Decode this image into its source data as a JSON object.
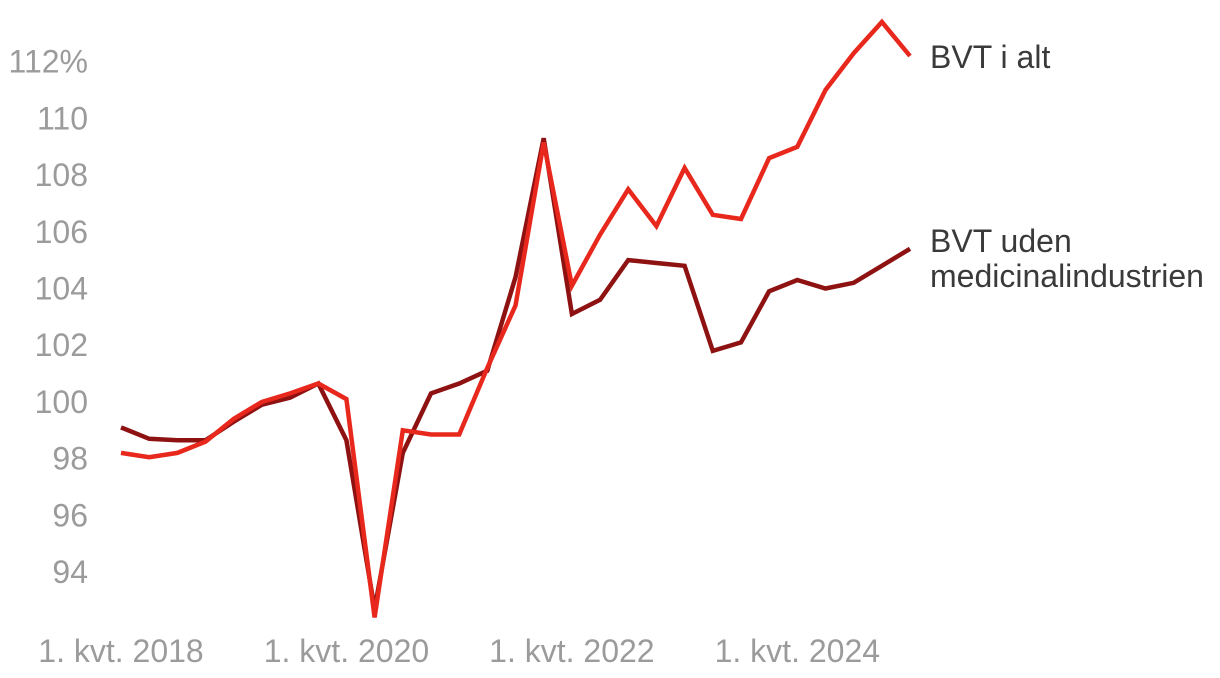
{
  "chart": {
    "background_color": "#ffffff",
    "axis_label_color": "#9b9b9b",
    "legend_text_color": "#3a3a3a",
    "legend": {
      "series1_label": "BVT i alt",
      "series2_label_line1": "BVT uden",
      "series2_label_line2": "medicinalindustrien"
    },
    "chart_data": {
      "type": "line",
      "title": "",
      "xlabel": "",
      "ylabel": "",
      "grid": "off",
      "legend_position": "right of line ends",
      "x_unit": "quarter",
      "categories": [
        "2018K1",
        "2018K2",
        "2018K3",
        "2018K4",
        "2019K1",
        "2019K2",
        "2019K3",
        "2019K4",
        "2020K1",
        "2020K2",
        "2020K3",
        "2020K4",
        "2021K1",
        "2021K2",
        "2021K3",
        "2021K4",
        "2022K1",
        "2022K2",
        "2022K3",
        "2022K4",
        "2023K1",
        "2023K2",
        "2023K3",
        "2023K4",
        "2024K1",
        "2024K2",
        "2024K3",
        "2024K4",
        "2025K1"
      ],
      "series": [
        {
          "name": "BVT i alt",
          "color": "#e8281c",
          "values": [
            98.2,
            98.05,
            98.2,
            98.6,
            99.4,
            100.0,
            100.3,
            100.65,
            100.1,
            92.4,
            99.0,
            98.85,
            98.85,
            101.2,
            103.4,
            109.15,
            104.1,
            105.9,
            107.5,
            106.2,
            108.25,
            106.6,
            106.45,
            108.6,
            109.0,
            111.0,
            112.3,
            113.4,
            112.2
          ]
        },
        {
          "name": "BVT uden medicinalindustrien",
          "color": "#8e1212",
          "values": [
            99.1,
            98.7,
            98.65,
            98.65,
            99.3,
            99.9,
            100.15,
            100.65,
            98.65,
            92.7,
            98.2,
            100.3,
            100.65,
            101.1,
            104.4,
            109.3,
            103.1,
            103.6,
            105.0,
            104.9,
            104.8,
            101.8,
            102.1,
            103.9,
            104.3,
            104.0,
            104.2,
            104.8,
            105.4
          ]
        }
      ],
      "y_axis": {
        "ticks": [
          {
            "value": 112,
            "label": "112%"
          },
          {
            "value": 110,
            "label": "110"
          },
          {
            "value": 108,
            "label": "108"
          },
          {
            "value": 106,
            "label": "106"
          },
          {
            "value": 104,
            "label": "104"
          },
          {
            "value": 102,
            "label": "102"
          },
          {
            "value": 100,
            "label": "100"
          },
          {
            "value": 98,
            "label": "98"
          },
          {
            "value": 96,
            "label": "96"
          },
          {
            "value": 94,
            "label": "94"
          }
        ],
        "range_shown": [
          92.2,
          113.6
        ]
      },
      "x_axis": {
        "ticks": [
          {
            "index": 0,
            "label": "1. kvt. 2018"
          },
          {
            "index": 8,
            "label": "1. kvt. 2020"
          },
          {
            "index": 16,
            "label": "1. kvt. 2022"
          },
          {
            "index": 24,
            "label": "1. kvt. 2024"
          }
        ]
      }
    }
  }
}
